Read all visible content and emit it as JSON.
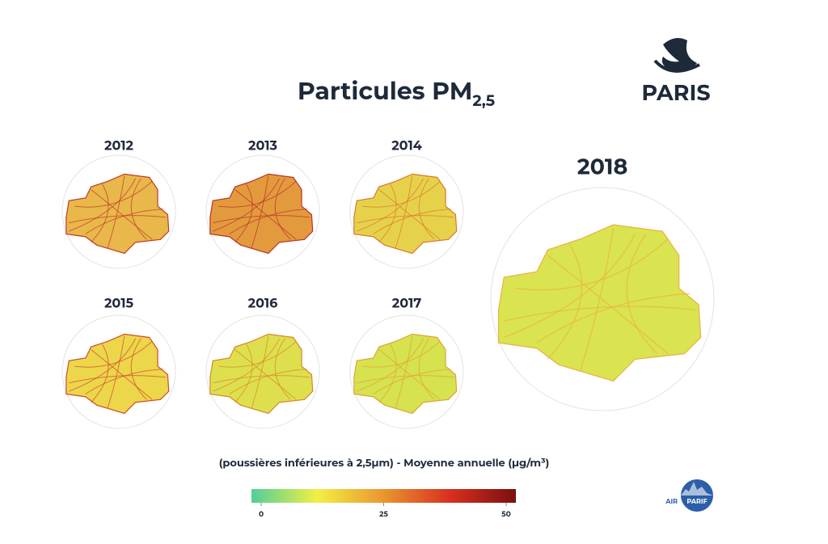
{
  "header": {
    "title": "Particules PM",
    "title_subscript": "2,5",
    "logo": "PARIS"
  },
  "maps": [
    {
      "year": "2012",
      "color": "#e8b84a",
      "road": "#c0392b"
    },
    {
      "year": "2013",
      "color": "#e39a3d",
      "road": "#b8322a"
    },
    {
      "year": "2014",
      "color": "#e6d24a",
      "road": "#d9772e"
    },
    {
      "year": "2015",
      "color": "#ecd64a",
      "road": "#cf4a2c"
    },
    {
      "year": "2016",
      "color": "#dde04c",
      "road": "#d8842f"
    },
    {
      "year": "2017",
      "color": "#d6e24e",
      "road": "#e0a23a"
    },
    {
      "year": "2018",
      "color": "#d9e450",
      "road": "#eeae45"
    }
  ],
  "legend": {
    "caption": "(poussières inférieures à 2,5µm) - Moyenne annuelle (µg/m³)",
    "lim": [
      0,
      50
    ],
    "ticks": [
      0,
      25,
      50
    ],
    "colors": [
      "#4fcf9a",
      "#f2ef44",
      "#e9962f",
      "#d8301f",
      "#7a1010"
    ]
  },
  "footer": {
    "logo_prefix": "AIR",
    "logo": "PARIF"
  }
}
